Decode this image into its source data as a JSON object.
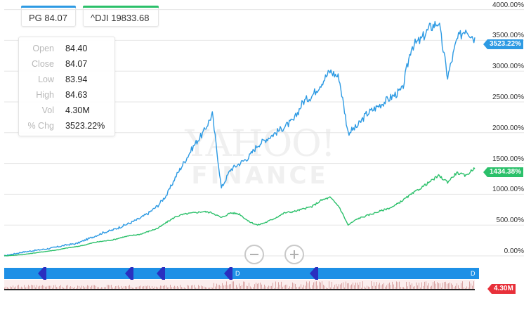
{
  "chips": [
    {
      "label": "PG 84.07",
      "color": "#2d9ae3"
    },
    {
      "label": "^DJI 19833.68",
      "color": "#2bc06a"
    }
  ],
  "tooltip": {
    "rows": [
      {
        "label": "Open",
        "value": "84.40"
      },
      {
        "label": "Close",
        "value": "84.07"
      },
      {
        "label": "Low",
        "value": "83.94"
      },
      {
        "label": "High",
        "value": "84.63"
      },
      {
        "label": "Vol",
        "value": "4.30M"
      },
      {
        "label": "% Chg",
        "value": "3523.22%"
      }
    ]
  },
  "watermark": {
    "line1": "YAHOO!",
    "line2": "FINANCE"
  },
  "tags": {
    "pg_last": "3523.22%",
    "dji_last": "1434.38%",
    "volume_last": "4.30M"
  },
  "colors": {
    "pg": "#2d9ae3",
    "dji": "#2bc06a",
    "volume": "#e8303a",
    "navigator": "#1e90e6",
    "handle": "#2a2fc0",
    "grid": "#e6e6e6"
  },
  "navigator": {
    "markers": [
      "D",
      "D"
    ]
  },
  "chart_data": {
    "type": "line",
    "y_unit": "% change",
    "ylim": [
      -120,
      4000
    ],
    "yticks": [
      "4000.00%",
      "3500.00%",
      "3000.00%",
      "2500.00%",
      "2000.00%",
      "1500.00%",
      "1000.00%",
      "500.00%",
      "0.00%"
    ],
    "ytick_values": [
      4000,
      3500,
      3000,
      2500,
      2000,
      1500,
      1000,
      500,
      0
    ],
    "grid": true,
    "series": [
      {
        "name": "PG",
        "color": "#2d9ae3",
        "values": [
          0,
          30,
          60,
          80,
          100,
          120,
          150,
          180,
          200,
          260,
          320,
          380,
          420,
          480,
          540,
          610,
          700,
          820,
          1000,
          1300,
          1550,
          1800,
          2000,
          2300,
          1100,
          1400,
          1500,
          1600,
          1800,
          1900,
          2000,
          2100,
          2200,
          2500,
          2600,
          2800,
          3000,
          2900,
          2000,
          2100,
          2300,
          2400,
          2500,
          2600,
          2700,
          3400,
          3500,
          3700,
          3800,
          2900,
          3500,
          3700,
          3523.22
        ]
      },
      {
        "name": "^DJI",
        "color": "#2bc06a",
        "values": [
          0,
          10,
          20,
          40,
          60,
          80,
          100,
          130,
          150,
          180,
          220,
          240,
          260,
          300,
          330,
          350,
          400,
          450,
          550,
          640,
          680,
          700,
          720,
          700,
          620,
          700,
          680,
          560,
          500,
          550,
          620,
          700,
          720,
          760,
          800,
          900,
          950,
          800,
          500,
          600,
          650,
          700,
          750,
          800,
          900,
          1000,
          1100,
          1200,
          1300,
          1200,
          1350,
          1300,
          1434.38
        ]
      }
    ]
  }
}
